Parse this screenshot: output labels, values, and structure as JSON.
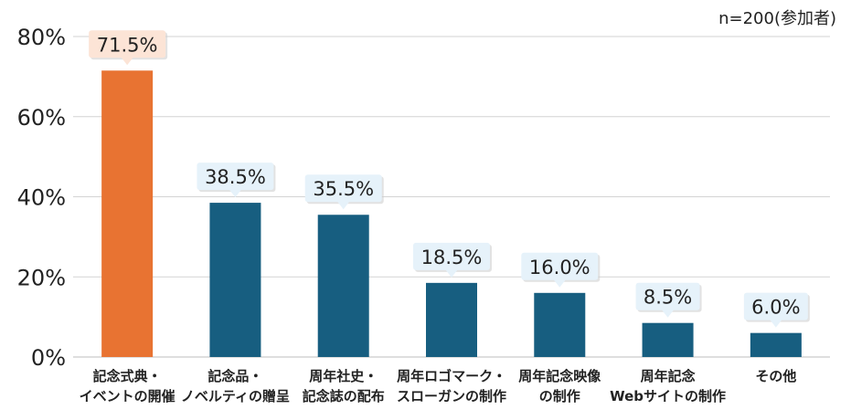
{
  "chart_data": {
    "type": "bar",
    "note": "n=200(参加者)",
    "categories": [
      [
        "記念式典・",
        "イベントの開催"
      ],
      [
        "記念品・",
        "ノベルティの贈呈"
      ],
      [
        "周年社史・",
        "記念誌の配布"
      ],
      [
        "周年ロゴマーク・",
        "スローガンの制作"
      ],
      [
        "周年記念映像",
        "の制作"
      ],
      [
        "周年記念",
        "Webサイトの制作"
      ],
      [
        "その他"
      ]
    ],
    "values": [
      71.5,
      38.5,
      35.5,
      18.5,
      16.0,
      8.5,
      6.0
    ],
    "data_labels": [
      "71.5%",
      "38.5%",
      "35.5%",
      "18.5%",
      "16.0%",
      "8.5%",
      "6.0%"
    ],
    "yticks": [
      "0%",
      "20%",
      "40%",
      "60%",
      "80%"
    ],
    "ylim": [
      0,
      80
    ],
    "grid": true,
    "colors": {
      "highlight_bar": "#E87332",
      "bar": "#175E80",
      "highlight_label_bg": "#FCE4D6",
      "label_bg": "#E6F2FA",
      "grid": "#D3D3D3"
    }
  }
}
